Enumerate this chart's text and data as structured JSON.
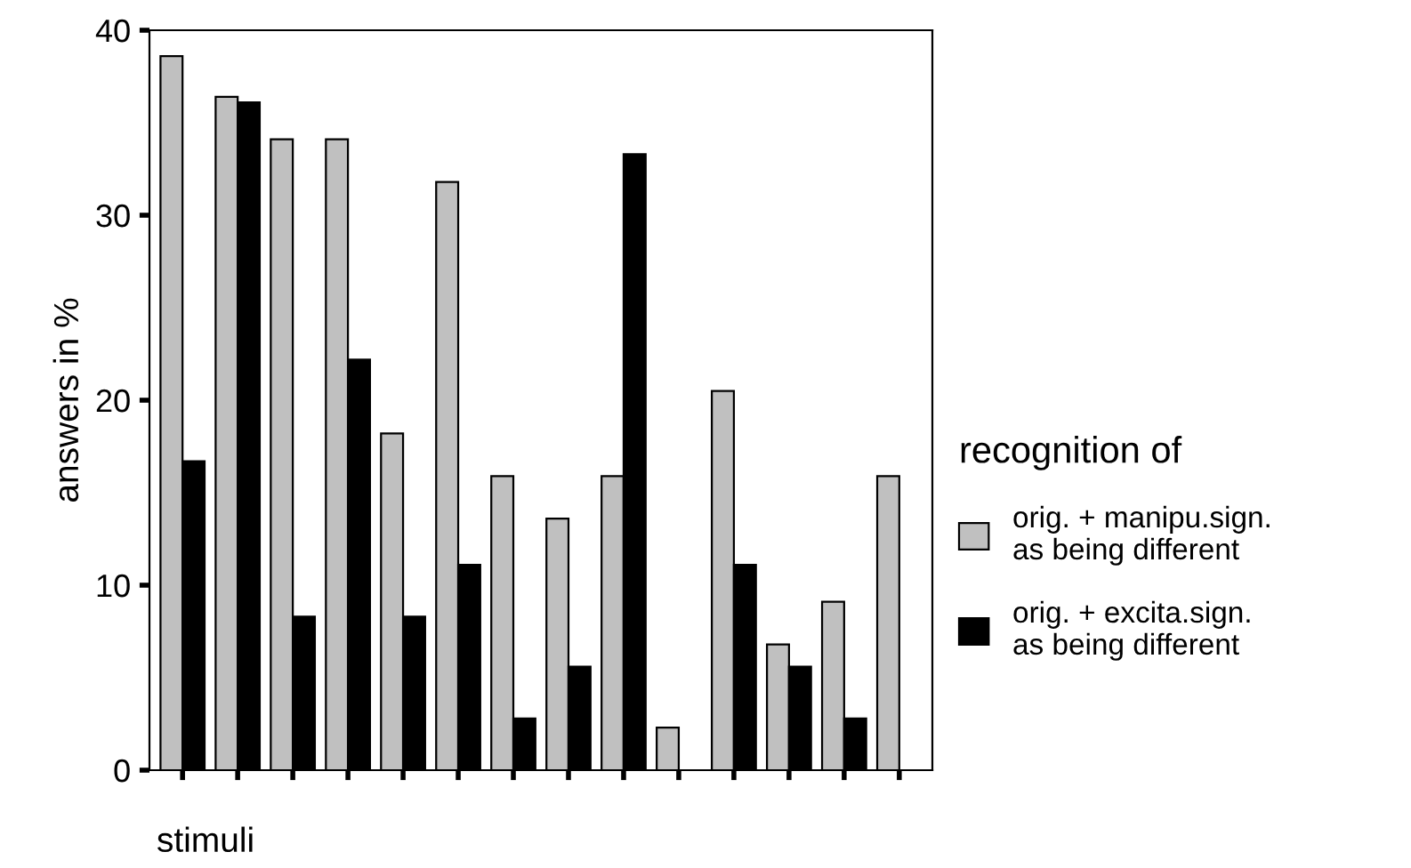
{
  "chart_data": {
    "type": "bar",
    "xlabel": "stimuli",
    "ylabel": "answers in %",
    "legend_title": "recognition of",
    "categories": [
      null,
      null,
      null,
      null,
      null,
      null,
      null,
      null,
      null,
      null,
      null,
      null,
      null,
      null
    ],
    "series": [
      {
        "name": "orig. + manipu.sign.\nas being different",
        "color": "#c0c0c0",
        "values": [
          38.6,
          36.4,
          34.1,
          34.1,
          18.2,
          31.8,
          15.9,
          13.6,
          15.9,
          2.3,
          20.5,
          6.8,
          9.1,
          15.9
        ]
      },
      {
        "name": "orig. + excita.sign.\nas being different",
        "color": "#000000",
        "values": [
          16.7,
          36.1,
          8.3,
          22.2,
          8.3,
          11.1,
          2.8,
          5.6,
          33.3,
          null,
          11.1,
          5.6,
          2.8,
          null
        ]
      }
    ],
    "ylim": [
      0,
      40
    ],
    "yticks": [
      0,
      10,
      20,
      30,
      40
    ],
    "grid": false,
    "legend": "right",
    "tick_labels": "y"
  }
}
